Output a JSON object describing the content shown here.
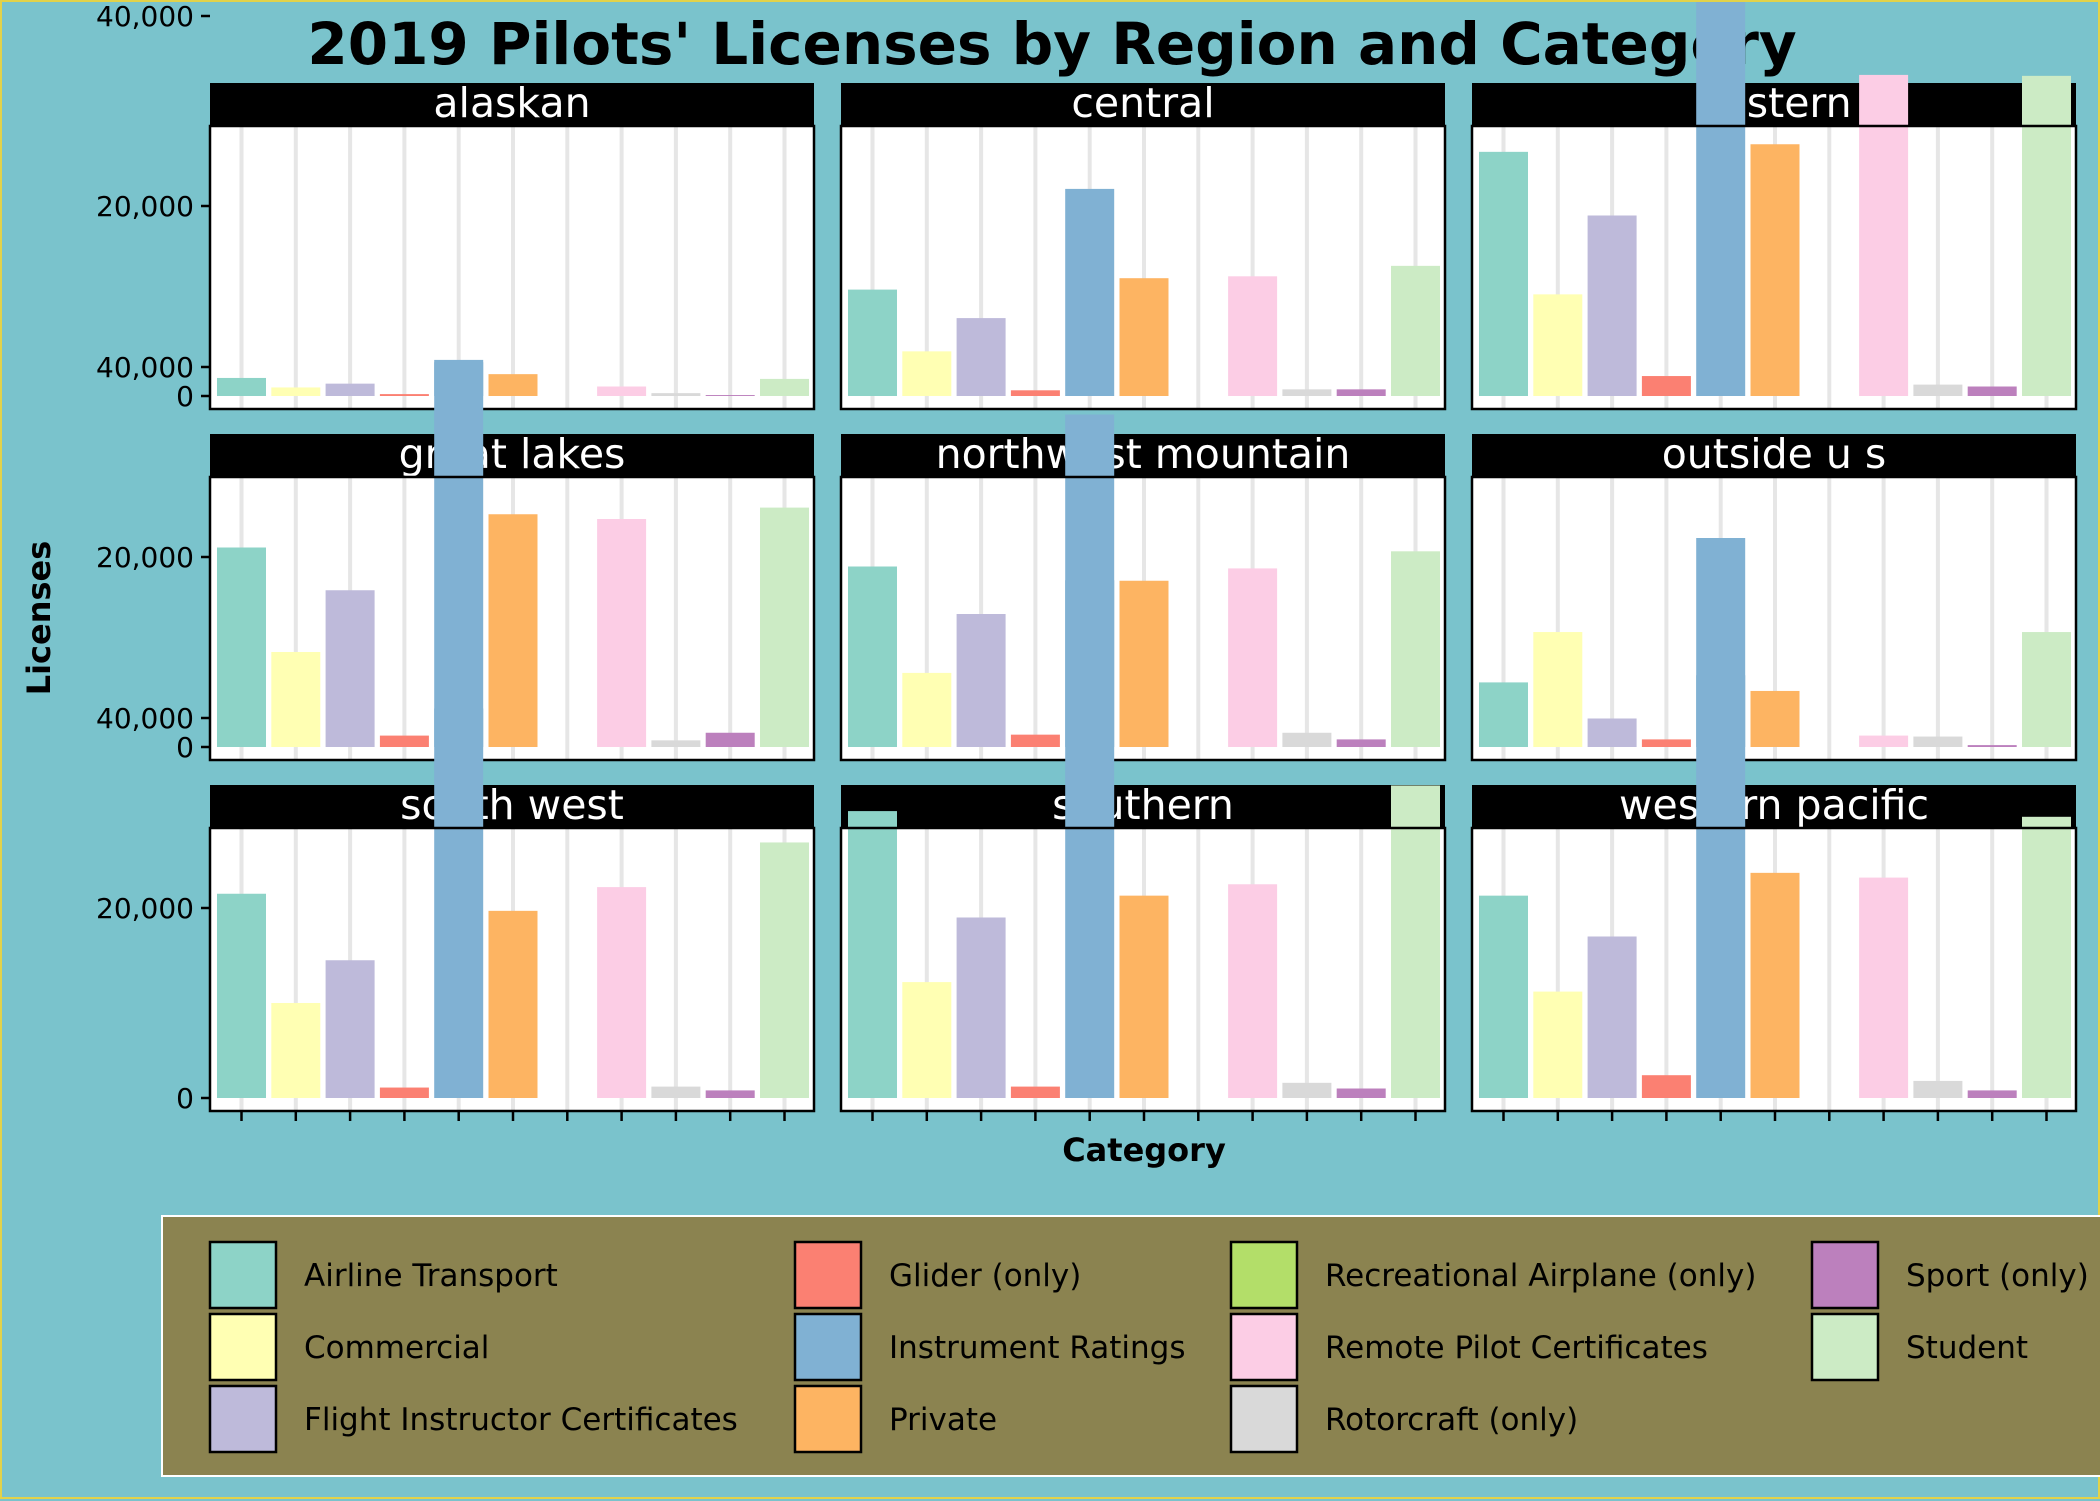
{
  "chart_data": {
    "type": "bar",
    "title": "2019 Pilots' Licenses by Region and Category",
    "xlabel": "Category",
    "ylabel": "Licenses",
    "ylim": [
      0,
      60000
    ],
    "y_ticks": [
      "0",
      "20,000",
      "40,000"
    ],
    "y_tick_values": [
      0,
      20000,
      40000
    ],
    "grid": true,
    "legend_position": "bottom",
    "categories": [
      "Airline Transport",
      "Commercial",
      "Flight Instructor Certificates",
      "Glider (only)",
      "Instrument Ratings",
      "Private",
      "Recreational Airplane (only)",
      "Remote Pilot Certificates",
      "Rotorcraft (only)",
      "Sport (only)",
      "Student"
    ],
    "category_colors": [
      "#8dd3c7",
      "#ffffb3",
      "#bebada",
      "#fb8072",
      "#80b1d3",
      "#fdb462",
      "#b3de69",
      "#fccde5",
      "#d9d9d9",
      "#bc80bd",
      "#ccebc5"
    ],
    "legend": [
      "Airline Transport",
      "Glider (only)",
      "Recreational Airplane (only)",
      "Sport (only)",
      "Commercial",
      "Instrument Ratings",
      "Remote Pilot Certificates",
      "Student",
      "Flight Instructor Certificates",
      "Private",
      "Rotorcraft (only)"
    ],
    "panels": [
      {
        "region": "alaskan",
        "values": [
          1900,
          900,
          1300,
          200,
          3800,
          2300,
          0,
          1000,
          300,
          100,
          1800
        ]
      },
      {
        "region": "central",
        "values": [
          11200,
          4700,
          8200,
          600,
          21800,
          12400,
          0,
          12600,
          700,
          700,
          13700
        ]
      },
      {
        "region": "eastern",
        "values": [
          25700,
          10700,
          19000,
          2100,
          50000,
          26500,
          0,
          33800,
          1200,
          1000,
          33700
        ]
      },
      {
        "region": "great lakes",
        "values": [
          21000,
          10000,
          16500,
          1200,
          40500,
          24500,
          0,
          24000,
          700,
          1500,
          25200
        ]
      },
      {
        "region": "northwest mountain",
        "values": [
          19000,
          7800,
          14000,
          1300,
          35000,
          17500,
          0,
          18800,
          1500,
          800,
          20600
        ]
      },
      {
        "region": "outside u s",
        "values": [
          6800,
          12100,
          3000,
          800,
          22000,
          5900,
          0,
          1200,
          1100,
          200,
          12100
        ]
      },
      {
        "region": "south west",
        "values": [
          21500,
          10000,
          14500,
          1100,
          41000,
          19700,
          0,
          22200,
          1200,
          800,
          26900
        ]
      },
      {
        "region": "southern",
        "values": [
          30200,
          12200,
          19000,
          1200,
          54500,
          21300,
          0,
          22500,
          1600,
          1000,
          32900
        ]
      },
      {
        "region": "western pacific",
        "values": [
          21300,
          11200,
          17000,
          2400,
          44500,
          23700,
          0,
          23200,
          1800,
          800,
          29600
        ]
      }
    ]
  }
}
